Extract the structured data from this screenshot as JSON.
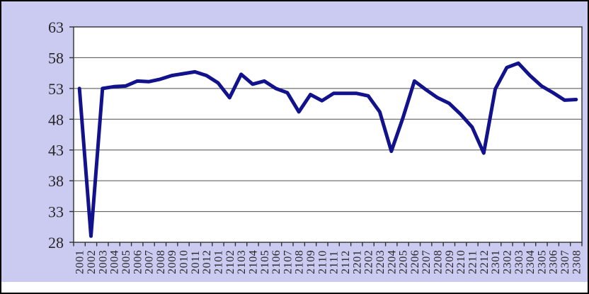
{
  "chart_data": {
    "type": "line",
    "title": "",
    "xlabel": "",
    "ylabel": "",
    "categories": [
      "2001",
      "2002",
      "2003",
      "2004",
      "2005",
      "2006",
      "2007",
      "2008",
      "2009",
      "2010",
      "2011",
      "2012",
      "2101",
      "2102",
      "2103",
      "2104",
      "2105",
      "2106",
      "2107",
      "2108",
      "2109",
      "2110",
      "2111",
      "2112",
      "2201",
      "2202",
      "2203",
      "2204",
      "2205",
      "2206",
      "2207",
      "2208",
      "2209",
      "2210",
      "2211",
      "2212",
      "2301",
      "2302",
      "2303",
      "2304",
      "2305",
      "2306",
      "2307",
      "2308"
    ],
    "values": [
      53.0,
      29.0,
      53.0,
      53.3,
      53.4,
      54.2,
      54.1,
      54.5,
      55.1,
      55.4,
      55.7,
      55.1,
      53.9,
      51.5,
      55.3,
      53.7,
      54.2,
      53.0,
      52.3,
      49.2,
      52.0,
      51.0,
      52.2,
      52.2,
      52.2,
      51.8,
      49.2,
      42.8,
      48.2,
      54.2,
      52.8,
      51.5,
      50.6,
      48.8,
      46.7,
      42.5,
      52.9,
      56.4,
      57.1,
      55.1,
      53.4,
      52.3,
      51.1,
      51.2
    ],
    "ylim": [
      28,
      63
    ],
    "y_ticks": [
      28,
      33,
      38,
      43,
      48,
      53,
      58,
      63
    ],
    "grid": true,
    "legend": false,
    "x_tick_label_rotation_deg": 90
  },
  "colors": {
    "outer_border": "#000000",
    "chart_background": "#CBCBF2",
    "plot_background": "#FFFFFF",
    "line": "#12128C",
    "gridline": "#4D4D4D",
    "axis": "#303030",
    "tick_label": "#262626"
  }
}
